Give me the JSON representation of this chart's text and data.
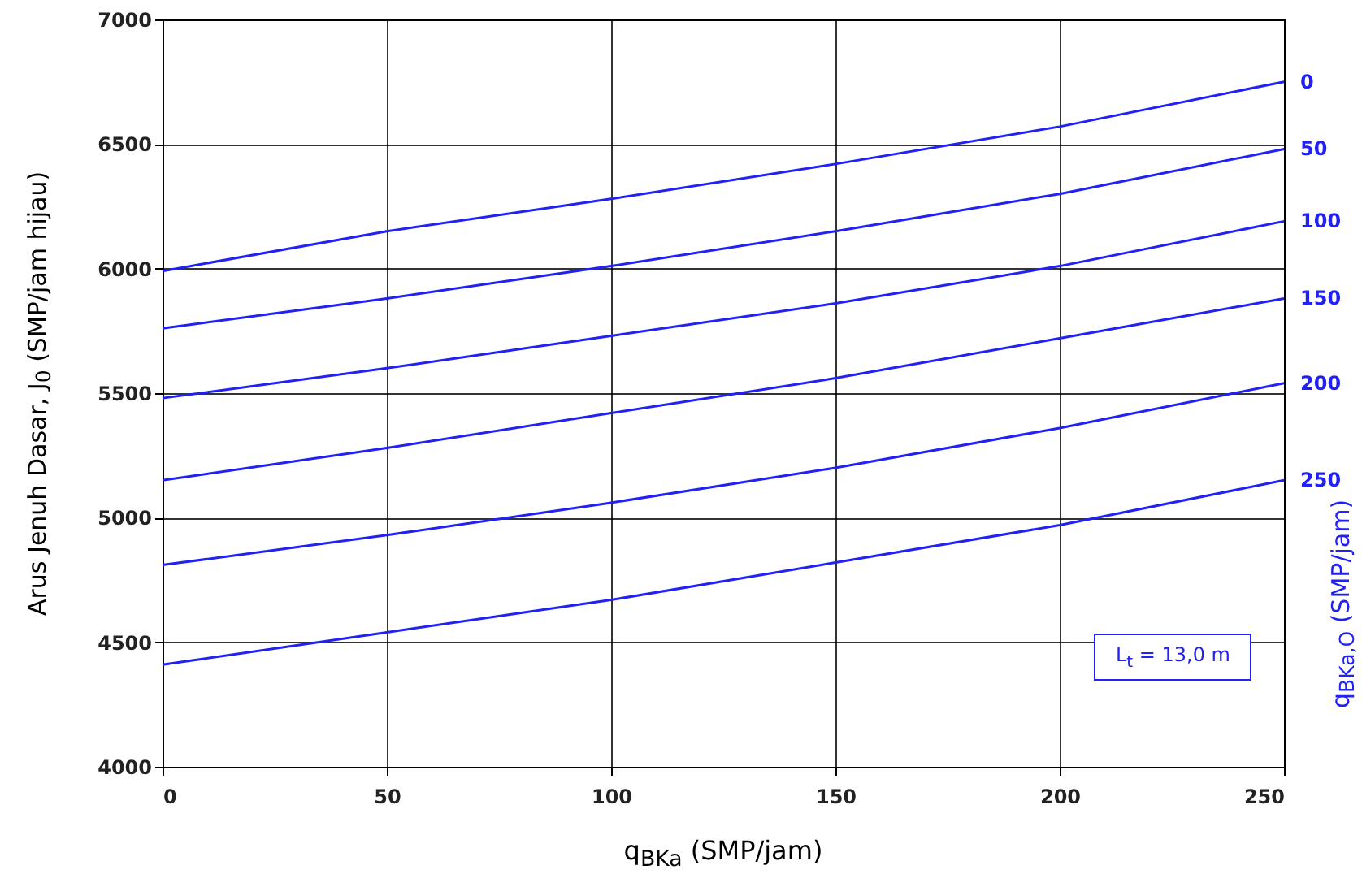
{
  "chart_data": {
    "type": "line",
    "xlabel": "q$_{BKa}$ (SMP/jam)",
    "ylabel": "Arus Jenuh Dasar, J$_{0}$ (SMP/jam hijau)",
    "y2label": "q$_{BKa,O}$ (SMP/jam)",
    "x": [
      0,
      50,
      100,
      150,
      200,
      250
    ],
    "series": [
      {
        "name": "0",
        "color": "#2121f5",
        "values": [
          5990,
          6150,
          6280,
          6420,
          6570,
          6750
        ]
      },
      {
        "name": "50",
        "color": "#2121f5",
        "values": [
          5760,
          5880,
          6010,
          6150,
          6300,
          6480
        ]
      },
      {
        "name": "100",
        "color": "#2121f5",
        "values": [
          5480,
          5600,
          5730,
          5860,
          6010,
          6190
        ]
      },
      {
        "name": "150",
        "color": "#2121f5",
        "values": [
          5150,
          5280,
          5420,
          5560,
          5720,
          5880
        ]
      },
      {
        "name": "200",
        "color": "#2121f5",
        "values": [
          4810,
          4930,
          5060,
          5200,
          5360,
          5540
        ]
      },
      {
        "name": "250",
        "color": "#2121f5",
        "values": [
          4410,
          4540,
          4670,
          4820,
          4970,
          5150
        ]
      }
    ],
    "annotations": [
      "L$_{t}$ = 13,0 m"
    ],
    "xlim": [
      0,
      250
    ],
    "xticks": [
      0,
      50,
      100,
      150,
      200,
      250
    ],
    "ylim": [
      4000,
      7000
    ],
    "yticks": [
      4000,
      4500,
      5000,
      5500,
      6000,
      6500,
      7000
    ],
    "grid": true,
    "line_style": "solid"
  }
}
